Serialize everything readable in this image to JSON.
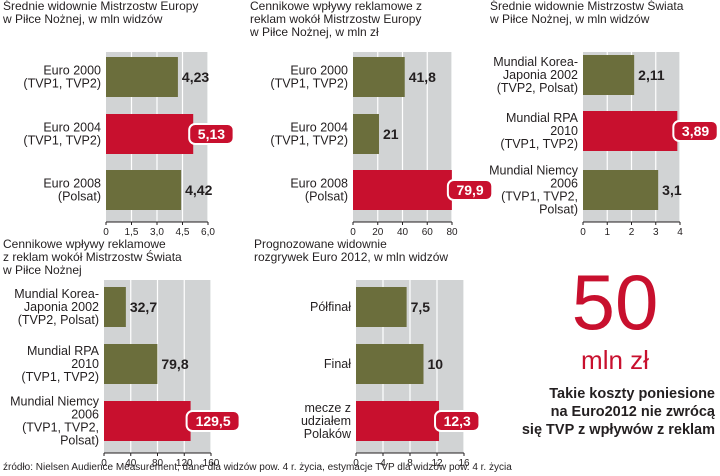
{
  "colors": {
    "bar": "#6b6e3c",
    "highlight": "#c8102e",
    "background": "#ffffff",
    "grid": "#ffffff",
    "text": "#231f20"
  },
  "big_number": {
    "value": "50",
    "unit": "mln zł"
  },
  "note": [
    "Takie koszty poniesione",
    "na Euro2012 nie zwrócą",
    "się TVP z wpływów z reklam"
  ],
  "source": "źródło: Nielsen Audience Measurement, dane dla widzów pow. 4 r. życia, estymacje TVP dla widzów pow. 4 r. życia",
  "chart_data": [
    {
      "type": "bar",
      "orientation": "horizontal",
      "title": "Średnie widownie Mistrzostw Europy\nw Piłce Nożnej, w mln widzów",
      "categories": [
        "Euro 2000\n(TVP1, TVP2)",
        "Euro 2004\n(TVP1, TVP2)",
        "Euro 2008\n(Polsat)"
      ],
      "values": [
        4.23,
        5.13,
        4.42
      ],
      "value_labels": [
        "4,23",
        "5,13",
        "4,42"
      ],
      "highlight_index": 1,
      "xlim": [
        0,
        6.0
      ],
      "ticks": [
        0,
        1.5,
        3.0,
        4.5,
        6.0
      ],
      "tick_labels": [
        "0",
        "1,5",
        "3,0",
        "4,5",
        "6,0"
      ]
    },
    {
      "type": "bar",
      "orientation": "horizontal",
      "title": "Cennikowe wpływy reklamowe z\nreklam wokół Mistrzostw Europy\nw Piłce Nożnej, w mln zł",
      "categories": [
        "Euro 2000\n(TVP1, TVP2)",
        "Euro 2004\n(TVP1, TVP2)",
        "Euro 2008\n(Polsat)"
      ],
      "values": [
        41.8,
        21,
        79.9
      ],
      "value_labels": [
        "41,8",
        "21",
        "79,9"
      ],
      "highlight_index": 2,
      "xlim": [
        0,
        80
      ],
      "ticks": [
        0,
        20,
        40,
        60,
        80
      ],
      "tick_labels": [
        "0",
        "20",
        "40",
        "60",
        "80"
      ]
    },
    {
      "type": "bar",
      "orientation": "horizontal",
      "title": "Średnie widownie Mistrzostw Świata\nw Piłce Nożnej, w mln widzów",
      "categories": [
        "Mundial Korea-\nJaponia 2002\n(TVP2, Polsat)",
        "Mundial RPA\n2010\n(TVP1, TVP2)",
        "Mundial Niemcy\n2006\n(TVP1, TVP2,\nPolsat)"
      ],
      "values": [
        2.11,
        3.89,
        3.1
      ],
      "value_labels": [
        "2,11",
        "3,89",
        "3,1"
      ],
      "highlight_index": 1,
      "xlim": [
        0,
        4
      ],
      "ticks": [
        0,
        1,
        2,
        3,
        4
      ],
      "tick_labels": [
        "0",
        "1",
        "2",
        "3",
        "4"
      ]
    },
    {
      "type": "bar",
      "orientation": "horizontal",
      "title": "Cennikowe wpływy reklamowe\nz reklam wokół Mistrzostw Świata\nw Piłce Nożnej",
      "categories": [
        "Mundial Korea-\nJaponia 2002\n(TVP2, Polsat)",
        "Mundial RPA\n2010\n(TVP1, TVP2)",
        "Mundial Niemcy\n2006\n(TVP1, TVP2,\nPolsat)"
      ],
      "values": [
        32.7,
        79.8,
        129.5
      ],
      "value_labels": [
        "32,7",
        "79,8",
        "129,5"
      ],
      "highlight_index": 2,
      "xlim": [
        0,
        160
      ],
      "ticks": [
        0,
        40,
        80,
        120,
        160
      ],
      "tick_labels": [
        "0",
        "40",
        "80",
        "120",
        "160"
      ]
    },
    {
      "type": "bar",
      "orientation": "horizontal",
      "title": "Prognozowane widownie\nrozgrywek Euro 2012, w mln widzów",
      "categories": [
        "Półfinał",
        "Finał",
        "mecze z\nudziałem\nPolaków"
      ],
      "values": [
        7.5,
        10,
        12.3
      ],
      "value_labels": [
        "7,5",
        "10",
        "12,3"
      ],
      "highlight_index": 2,
      "xlim": [
        0,
        16
      ],
      "ticks": [
        0,
        4,
        8,
        12,
        16
      ],
      "tick_labels": [
        "0",
        "4",
        "8",
        "12",
        "16"
      ]
    }
  ]
}
